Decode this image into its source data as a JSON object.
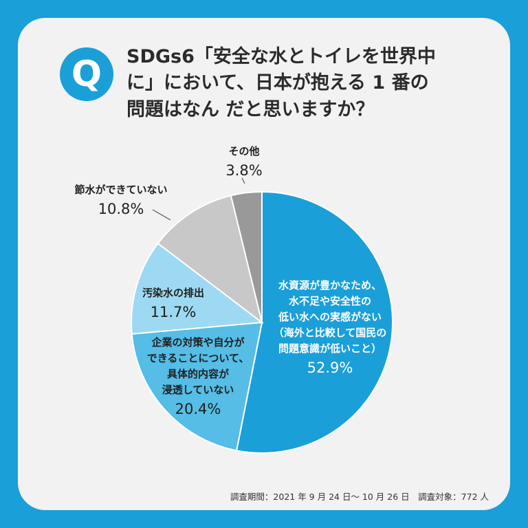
{
  "badge": "Q",
  "question_lines": [
    "SDGs6「安全な水とトイレを世界中",
    "に」において、日本が抱える 1 番の",
    "問題はなん だと思いますか？"
  ],
  "survey_note": "調査期間：2021 年 9 月 24 日～ 10 月 26 日　調査対象：772 人",
  "colors": {
    "background": "#1a9fd9",
    "slice_1": "#1a9fd9",
    "slice_2": "#55bde6",
    "slice_3": "#9dd9f2",
    "slice_4": "#c8c8c8",
    "slice_5": "#999999"
  },
  "chart_data": {
    "type": "pie",
    "title": "SDGs6「安全な水とトイレを世界中に」において、日本が抱える 1 番の問題はなん だと思いますか？",
    "unit": "%",
    "slices": [
      {
        "label_lines": [
          "水資源が豊かなため、",
          "水不足や安全性の",
          "低い水への実感がない",
          "（海外と比較して国民の",
          "問題意識が低いこと）"
        ],
        "value": 52.9,
        "value_label": "52.9%"
      },
      {
        "label_lines": [
          "企業の対策や自分が",
          "できることについて、",
          "具体的内容が",
          "浸透していない"
        ],
        "value": 20.4,
        "value_label": "20.4%"
      },
      {
        "label_lines": [
          "汚染水の排出"
        ],
        "value": 11.7,
        "value_label": "11.7%"
      },
      {
        "label_lines": [
          "節水ができていない"
        ],
        "value": 10.8,
        "value_label": "10.8%"
      },
      {
        "label_lines": [
          "その他"
        ],
        "value": 3.8,
        "value_label": "3.8%"
      }
    ]
  }
}
